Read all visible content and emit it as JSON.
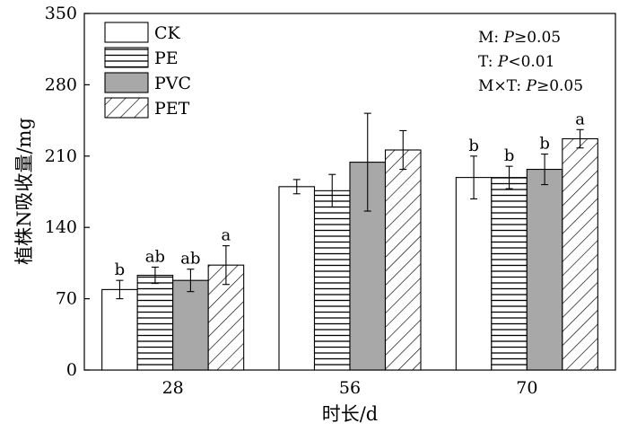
{
  "chart_data": {
    "type": "bar",
    "categories": [
      "28",
      "56",
      "70"
    ],
    "xlabel": "时长/d",
    "ylabel": "植株N吸收量/mg",
    "ylim": [
      0,
      350
    ],
    "yticks": [
      0,
      70,
      140,
      210,
      280,
      350
    ],
    "series": [
      {
        "name": "CK",
        "values": [
          79,
          180,
          189
        ],
        "errors": [
          9,
          7,
          21
        ],
        "letters": [
          "b",
          "",
          "b"
        ],
        "pattern": "white",
        "color": "#ffffff"
      },
      {
        "name": "PE",
        "values": [
          93,
          176,
          189
        ],
        "errors": [
          8,
          16,
          11
        ],
        "letters": [
          "ab",
          "",
          "b"
        ],
        "pattern": "hlines",
        "color": "#ffffff"
      },
      {
        "name": "PVC",
        "values": [
          88,
          204,
          197
        ],
        "errors": [
          11,
          48,
          15
        ],
        "letters": [
          "ab",
          "",
          "b"
        ],
        "pattern": "gray",
        "color": "#a8a8a8"
      },
      {
        "name": "PET",
        "values": [
          103,
          216,
          227
        ],
        "errors": [
          19,
          19,
          9
        ],
        "letters": [
          "a",
          "",
          "a"
        ],
        "pattern": "diagonal",
        "color": "#ffffff"
      }
    ],
    "annotations": [
      {
        "prefix": "M: ",
        "italic": "P",
        "suffix": "≥0.05"
      },
      {
        "prefix": "T: ",
        "italic": "P",
        "suffix": "<0.01"
      },
      {
        "prefix": "M×T: ",
        "italic": "P",
        "suffix": "≥0.05"
      }
    ],
    "legend_position": "top-left",
    "grid": false
  }
}
